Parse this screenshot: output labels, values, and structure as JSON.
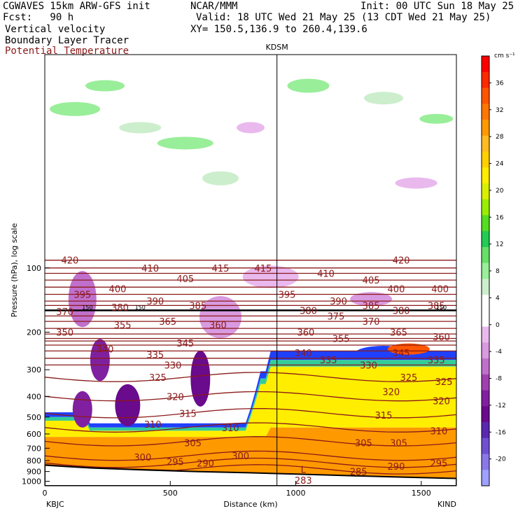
{
  "header": {
    "model": "CGWAVES 15km ARW-GFS init",
    "fcst": "Fcst:   90 h",
    "org": "NCAR/MMM",
    "init": "Init: 00 UTC Sun 18 May 25",
    "valid": "Valid: 18 UTC Wed 21 May 25 (13 CDT Wed 21 May 25)",
    "xy": "XY= 150.5,136.9 to 260.4,139.6",
    "field1": "Vertical velocity",
    "field2": "Boundary Layer Tracer",
    "field3": "Potential Temperature",
    "field3_color": "#8b1a1a"
  },
  "chart_data": {
    "type": "cross-section",
    "xlabel": "Distance (km)",
    "ylabel": "Pressure (hPa), log scale",
    "x_ticks": [
      "0",
      "500",
      "1000",
      "1500"
    ],
    "x_tick_values": [
      0,
      500,
      1000,
      1500
    ],
    "xlim": [
      0,
      1640
    ],
    "y_ticks": [
      "100",
      "200",
      "300",
      "400",
      "500",
      "600",
      "700",
      "800",
      "900",
      "1000"
    ],
    "y_tick_values": [
      100,
      200,
      300,
      400,
      500,
      600,
      700,
      800,
      900,
      1000
    ],
    "ylim": [
      1050,
      10
    ],
    "left_station": "KBJC",
    "right_station": "KIND",
    "mid_station": "KDSM",
    "mid_station_km": 925,
    "colorbar": {
      "unit": "cm s⁻¹",
      "tick_labels": [
        "36",
        "32",
        "28",
        "24",
        "20",
        "16",
        "12",
        "8",
        "4",
        "0",
        "-4",
        "-8",
        "-12",
        "-16",
        "-20"
      ],
      "tick_values": [
        36,
        32,
        28,
        24,
        20,
        16,
        12,
        8,
        4,
        0,
        -4,
        -8,
        -12,
        -16,
        -20
      ],
      "colors": [
        "#ff0000",
        "#ff2a00",
        "#ff5500",
        "#ff7700",
        "#ff9900",
        "#ffbb22",
        "#ffd000",
        "#ffee00",
        "#d8f000",
        "#99ee00",
        "#55dd22",
        "#22cc55",
        "#66e066",
        "#99ee99",
        "#cceecc",
        "#ffffff",
        "#ffffff",
        "#e9b9ee",
        "#d99ae0",
        "#c070cc",
        "#a040b0",
        "#8020a0",
        "#6a0a8c",
        "#5a28b0",
        "#6f50d0",
        "#8a78e8",
        "#a0a0ff"
      ]
    },
    "theta_contours": [
      {
        "label": "420",
        "p": 92
      },
      {
        "label": "415",
        "p": 100
      },
      {
        "label": "410",
        "p": 106
      },
      {
        "label": "405",
        "p": 114
      },
      {
        "label": "400",
        "p": 123
      },
      {
        "label": "395",
        "p": 133
      },
      {
        "label": "390",
        "p": 143
      },
      {
        "label": "385",
        "p": 150
      },
      {
        "label": "380",
        "p": 158
      },
      {
        "label": "375",
        "p": 168
      },
      {
        "label": "370",
        "p": 178
      },
      {
        "label": "365",
        "p": 192
      },
      {
        "label": "360",
        "p": 204
      },
      {
        "label": "355",
        "p": 214
      },
      {
        "label": "350",
        "p": 220
      },
      {
        "label": "345",
        "p": 230
      },
      {
        "label": "340",
        "p": 245
      },
      {
        "label": "335",
        "p": 265
      },
      {
        "label": "330",
        "p": 285
      },
      {
        "label": "325",
        "p": 325
      },
      {
        "label": "320",
        "p": 400
      },
      {
        "label": "315",
        "p": 480
      },
      {
        "label": "310",
        "p": 560
      },
      {
        "label": "305",
        "p": 650
      },
      {
        "label": "300",
        "p": 760
      },
      {
        "label": "295",
        "p": 820
      },
      {
        "label": "290",
        "p": 880
      }
    ],
    "theta_labels": [
      {
        "t": "420",
        "x": 100,
        "p": 92
      },
      {
        "t": "410",
        "x": 420,
        "p": 100
      },
      {
        "t": "415",
        "x": 700,
        "p": 100
      },
      {
        "t": "415",
        "x": 870,
        "p": 100
      },
      {
        "t": "410",
        "x": 1120,
        "p": 106
      },
      {
        "t": "420",
        "x": 1420,
        "p": 92
      },
      {
        "t": "405",
        "x": 560,
        "p": 112
      },
      {
        "t": "405",
        "x": 1300,
        "p": 114
      },
      {
        "t": "395",
        "x": 150,
        "p": 133
      },
      {
        "t": "400",
        "x": 290,
        "p": 125
      },
      {
        "t": "390",
        "x": 440,
        "p": 143
      },
      {
        "t": "385",
        "x": 610,
        "p": 150
      },
      {
        "t": "395",
        "x": 965,
        "p": 133
      },
      {
        "t": "390",
        "x": 1170,
        "p": 143
      },
      {
        "t": "400",
        "x": 1400,
        "p": 125
      },
      {
        "t": "400",
        "x": 1575,
        "p": 125
      },
      {
        "t": "385",
        "x": 1300,
        "p": 150
      },
      {
        "t": "385",
        "x": 1560,
        "p": 150
      },
      {
        "t": "370",
        "x": 80,
        "p": 160
      },
      {
        "t": "380",
        "x": 300,
        "p": 153
      },
      {
        "t": "380",
        "x": 1050,
        "p": 158
      },
      {
        "t": "380",
        "x": 1420,
        "p": 158
      },
      {
        "t": "375",
        "x": 1160,
        "p": 168
      },
      {
        "t": "370",
        "x": 1300,
        "p": 178
      },
      {
        "t": "355",
        "x": 310,
        "p": 185
      },
      {
        "t": "365",
        "x": 490,
        "p": 178
      },
      {
        "t": "360",
        "x": 690,
        "p": 185
      },
      {
        "t": "350",
        "x": 80,
        "p": 200
      },
      {
        "t": "360",
        "x": 1040,
        "p": 200
      },
      {
        "t": "365",
        "x": 1410,
        "p": 200
      },
      {
        "t": "360",
        "x": 1580,
        "p": 210
      },
      {
        "t": "355",
        "x": 1180,
        "p": 214
      },
      {
        "t": "345",
        "x": 560,
        "p": 225
      },
      {
        "t": "340",
        "x": 240,
        "p": 240
      },
      {
        "t": "335",
        "x": 440,
        "p": 255
      },
      {
        "t": "340",
        "x": 1030,
        "p": 250
      },
      {
        "t": "335",
        "x": 1130,
        "p": 270
      },
      {
        "t": "330",
        "x": 1290,
        "p": 285
      },
      {
        "t": "345",
        "x": 1420,
        "p": 250
      },
      {
        "t": "335",
        "x": 1560,
        "p": 270
      },
      {
        "t": "330",
        "x": 510,
        "p": 285
      },
      {
        "t": "325",
        "x": 450,
        "p": 325
      },
      {
        "t": "325",
        "x": 1450,
        "p": 325
      },
      {
        "t": "325",
        "x": 1590,
        "p": 340
      },
      {
        "t": "320",
        "x": 520,
        "p": 400
      },
      {
        "t": "320",
        "x": 1380,
        "p": 380
      },
      {
        "t": "320",
        "x": 1580,
        "p": 420
      },
      {
        "t": "315",
        "x": 570,
        "p": 480
      },
      {
        "t": "315",
        "x": 1350,
        "p": 490
      },
      {
        "t": "310",
        "x": 430,
        "p": 540
      },
      {
        "t": "310",
        "x": 740,
        "p": 560
      },
      {
        "t": "310",
        "x": 1570,
        "p": 580
      },
      {
        "t": "305",
        "x": 590,
        "p": 660
      },
      {
        "t": "305",
        "x": 1270,
        "p": 660
      },
      {
        "t": "305",
        "x": 1410,
        "p": 660
      },
      {
        "t": "300",
        "x": 390,
        "p": 770
      },
      {
        "t": "300",
        "x": 780,
        "p": 760
      },
      {
        "t": "295",
        "x": 520,
        "p": 810
      },
      {
        "t": "290",
        "x": 640,
        "p": 820
      },
      {
        "t": "295",
        "x": 1570,
        "p": 820
      },
      {
        "t": "290",
        "x": 1400,
        "p": 850
      },
      {
        "t": "285",
        "x": 1250,
        "p": 900
      },
      {
        "t": "L",
        "x": 1030,
        "p": 880
      },
      {
        "t": "283",
        "x": 1030,
        "p": 990
      }
    ],
    "tropopause_label": "150",
    "tropopause_labels": [
      {
        "x": 170,
        "p": 153
      },
      {
        "x": 380,
        "p": 153
      },
      {
        "x": 1580,
        "p": 153
      }
    ]
  }
}
